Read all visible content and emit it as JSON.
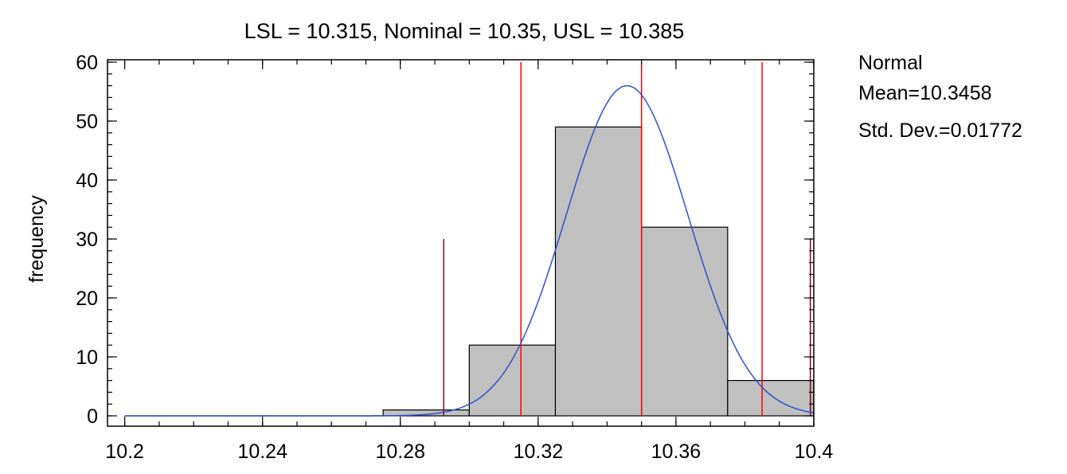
{
  "chart_data": {
    "type": "bar",
    "title": "LSL = 10.315, Nominal = 10.35, USL = 10.385",
    "xlabel": "",
    "ylabel": "frequency",
    "xlim": [
      10.195,
      10.4
    ],
    "ylim": [
      0,
      60
    ],
    "x_ticks": [
      10.2,
      10.24,
      10.28,
      10.32,
      10.36,
      10.4
    ],
    "x_tick_labels": [
      "10.2",
      "10.24",
      "10.28",
      "10.32",
      "10.36",
      "10.4"
    ],
    "y_ticks": [
      0,
      10,
      20,
      30,
      40,
      50,
      60
    ],
    "y_tick_labels": [
      "0",
      "10",
      "20",
      "30",
      "40",
      "50",
      "60"
    ],
    "bins": [
      {
        "start": 10.2,
        "end": 10.225,
        "count": 0
      },
      {
        "start": 10.225,
        "end": 10.25,
        "count": 0
      },
      {
        "start": 10.25,
        "end": 10.275,
        "count": 0
      },
      {
        "start": 10.275,
        "end": 10.3,
        "count": 1
      },
      {
        "start": 10.3,
        "end": 10.325,
        "count": 12
      },
      {
        "start": 10.325,
        "end": 10.35,
        "count": 49
      },
      {
        "start": 10.35,
        "end": 10.375,
        "count": 32
      },
      {
        "start": 10.375,
        "end": 10.4,
        "count": 6
      }
    ],
    "distribution": {
      "name": "Normal",
      "mean": 10.3458,
      "std_dev": 0.01772,
      "peak_frequency": 56
    },
    "spec_lines": {
      "color": "#ff0000",
      "values": [
        10.315,
        10.35,
        10.385
      ]
    },
    "sigma_lines": {
      "color": "#8b0022",
      "values": [
        10.2926,
        10.399
      ],
      "height": 30
    },
    "curve_color": "#2c52c8",
    "bar_color": "#c0c0c0",
    "legend": {
      "placement": "right",
      "lines": [
        "Normal",
        "Mean=10.3458",
        "Std. Dev.=0.01772"
      ]
    }
  }
}
